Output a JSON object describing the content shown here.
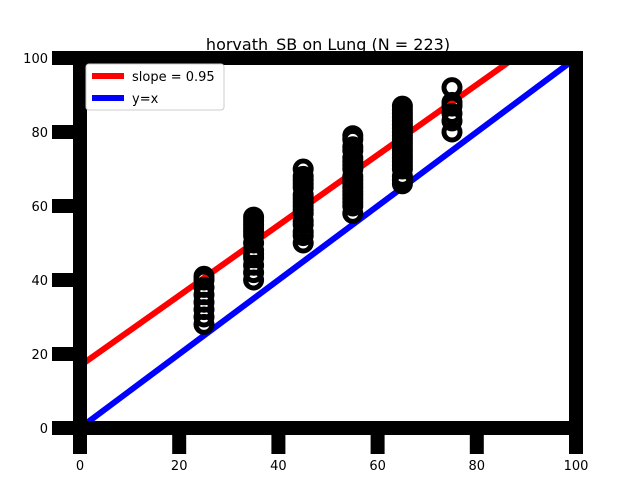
{
  "chart_data": {
    "type": "scatter",
    "title": "horvath_SB on Lung (N = 223)",
    "xlabel": "",
    "ylabel": "",
    "xlim": [
      0,
      100
    ],
    "ylim": [
      0,
      100
    ],
    "xticks": [
      0,
      20,
      40,
      60,
      80,
      100
    ],
    "yticks": [
      0,
      20,
      40,
      60,
      80,
      100
    ],
    "grid": false,
    "legend_position": "top-left",
    "series": [
      {
        "kind": "scatter",
        "color": "#000000",
        "x": [
          25,
          25,
          25,
          25,
          25,
          25,
          25,
          25,
          35,
          35,
          35,
          35,
          35,
          35,
          35,
          35,
          35,
          35,
          35,
          35,
          35,
          45,
          45,
          45,
          45,
          45,
          45,
          45,
          45,
          45,
          45,
          45,
          45,
          45,
          45,
          45,
          45,
          55,
          55,
          55,
          55,
          55,
          55,
          55,
          55,
          55,
          55,
          55,
          55,
          55,
          55,
          55,
          55,
          55,
          55,
          65,
          65,
          65,
          65,
          65,
          65,
          65,
          65,
          65,
          65,
          65,
          65,
          65,
          65,
          65,
          65,
          65,
          65,
          65,
          65,
          65,
          75,
          75,
          75,
          75,
          75,
          75
        ],
        "y": [
          28,
          30,
          32,
          34,
          36,
          38,
          40,
          41,
          40,
          42,
          44,
          46,
          47,
          48,
          50,
          52,
          53,
          54,
          55,
          56,
          57,
          50,
          52,
          53,
          55,
          56,
          58,
          59,
          60,
          61,
          62,
          63,
          65,
          66,
          67,
          68,
          70,
          58,
          60,
          61,
          62,
          63,
          64,
          65,
          66,
          67,
          68,
          70,
          71,
          72,
          73,
          75,
          76,
          78,
          79,
          66,
          67,
          68,
          70,
          71,
          72,
          73,
          74,
          75,
          76,
          77,
          78,
          79,
          80,
          81,
          82,
          83,
          84,
          85,
          86,
          87,
          80,
          83,
          85,
          87,
          88,
          92
        ]
      },
      {
        "kind": "line",
        "name": "slope = 0.95",
        "color": "#ff0000",
        "slope": 0.95,
        "intercept": 16.8
      },
      {
        "kind": "line",
        "name": "y=x",
        "color": "#0000ff",
        "slope": 1,
        "intercept": 0
      }
    ]
  }
}
